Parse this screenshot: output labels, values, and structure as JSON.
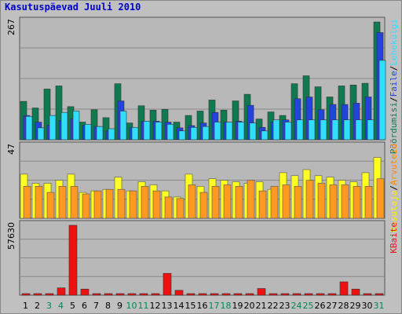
{
  "title": "Kasutuspäevad Juuli 2010",
  "colors": {
    "visits": "#0f7a50",
    "pages": "#2244dd",
    "hits": "#33ddff",
    "bandwidth": "#ee1111",
    "weekend_label": "#008855",
    "weekday_label": "#000000",
    "label_separator": "#000000",
    "panel_bg": "#b8b8b8"
  },
  "chart_data": [
    {
      "type": "bar",
      "ymax_label": "267",
      "ymax": 267,
      "categories": [
        "1",
        "2",
        "3",
        "4",
        "5",
        "6",
        "7",
        "8",
        "9",
        "10",
        "11",
        "12",
        "13",
        "14",
        "15",
        "16",
        "17",
        "18",
        "19",
        "20",
        "21",
        "22",
        "23",
        "24",
        "25",
        "26",
        "27",
        "28",
        "29",
        "30",
        "31"
      ],
      "weekend": [
        3,
        4,
        10,
        11,
        17,
        18,
        24,
        25,
        31
      ],
      "series_labels": [
        {
          "text": "Pöördumisi",
          "color": "#0f7a50"
        },
        {
          "text": "/",
          "color": "#000000"
        },
        {
          "text": "Faile",
          "color": "#2244dd"
        },
        {
          "text": "/",
          "color": "#000000"
        },
        {
          "text": "Lehekülgi",
          "color": "#33ddff"
        }
      ],
      "series": [
        {
          "key": "visits",
          "values": [
            87,
            72,
            115,
            122,
            75,
            40,
            68,
            50,
            127,
            38,
            77,
            67,
            69,
            40,
            55,
            65,
            90,
            67,
            88,
            103,
            47,
            63,
            55,
            127,
            145,
            120,
            97,
            122,
            124,
            128,
            267
          ]
        },
        {
          "key": "pages",
          "values": [
            55,
            40,
            33,
            44,
            48,
            33,
            30,
            20,
            88,
            28,
            42,
            42,
            40,
            27,
            32,
            38,
            62,
            40,
            42,
            78,
            28,
            40,
            45,
            93,
            97,
            68,
            80,
            80,
            83,
            97,
            243
          ]
        },
        {
          "key": "hits",
          "values": [
            53,
            27,
            55,
            62,
            65,
            35,
            30,
            25,
            65,
            28,
            42,
            40,
            35,
            20,
            28,
            30,
            40,
            40,
            40,
            38,
            20,
            45,
            40,
            45,
            45,
            45,
            45,
            45,
            45,
            45,
            180
          ]
        }
      ]
    },
    {
      "type": "bar",
      "ymax_label": "47",
      "ymax": 47,
      "series_labels": [
        {
          "text": "Kasutaja",
          "color": "#ffee00"
        },
        {
          "text": "/",
          "color": "#000000"
        },
        {
          "text": "Arvuteid",
          "color": "#ff8800"
        }
      ],
      "series": [
        {
          "key": "unique",
          "color": "#ffff22",
          "values": [
            29,
            23,
            23,
            25,
            29,
            17,
            18,
            19,
            27,
            18,
            24,
            22,
            18,
            14,
            29,
            21,
            26,
            25,
            24,
            23,
            24,
            19,
            30,
            28,
            32,
            28,
            27,
            25,
            24,
            30,
            40
          ]
        },
        {
          "key": "hosts",
          "color": "#ff9922",
          "values": [
            21,
            21,
            17,
            21,
            21,
            16,
            18,
            19,
            19,
            18,
            21,
            18,
            14,
            13,
            22,
            17,
            21,
            22,
            21,
            25,
            18,
            21,
            22,
            21,
            25,
            23,
            22,
            22,
            21,
            21,
            26
          ]
        }
      ]
    },
    {
      "type": "bar",
      "ymax_label": "57630",
      "ymax": 57630,
      "series_labels": [
        {
          "text": "KBaite",
          "color": "#ee1111"
        }
      ],
      "series": [
        {
          "key": "bandwidth",
          "color": "#ee1111",
          "values": [
            500,
            500,
            500,
            6000,
            57630,
            5000,
            500,
            500,
            500,
            500,
            500,
            500,
            18000,
            4000,
            500,
            500,
            700,
            500,
            700,
            700,
            5500,
            500,
            500,
            700,
            700,
            700,
            500,
            11000,
            5000,
            700,
            700
          ]
        }
      ]
    }
  ]
}
